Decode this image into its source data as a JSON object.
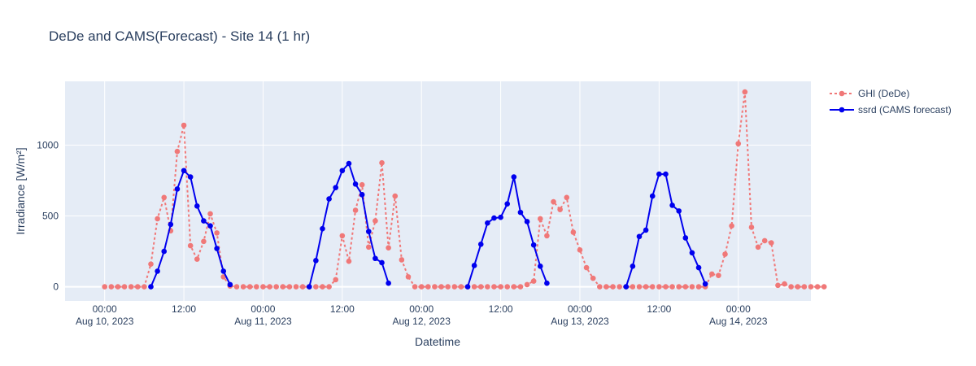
{
  "chart_data": {
    "type": "line",
    "title": "DeDe and CAMS(Forecast) - Site 14 (1 hr)",
    "xlabel": "Datetime",
    "ylabel": "Irradiance [W/m²]",
    "x_range": [
      "2023-08-09T18:00",
      "2023-08-14T11:00"
    ],
    "ylim": [
      -100,
      1450
    ],
    "y_ticks": [
      0,
      500,
      1000
    ],
    "x_ticks": [
      {
        "datetime": "2023-08-10T00:00",
        "label_time": "00:00",
        "label_date": "Aug 10, 2023"
      },
      {
        "datetime": "2023-08-10T12:00",
        "label_time": "12:00",
        "label_date": ""
      },
      {
        "datetime": "2023-08-11T00:00",
        "label_time": "00:00",
        "label_date": "Aug 11, 2023"
      },
      {
        "datetime": "2023-08-11T12:00",
        "label_time": "12:00",
        "label_date": ""
      },
      {
        "datetime": "2023-08-12T00:00",
        "label_time": "00:00",
        "label_date": "Aug 12, 2023"
      },
      {
        "datetime": "2023-08-12T12:00",
        "label_time": "12:00",
        "label_date": ""
      },
      {
        "datetime": "2023-08-13T00:00",
        "label_time": "00:00",
        "label_date": "Aug 13, 2023"
      },
      {
        "datetime": "2023-08-13T12:00",
        "label_time": "12:00",
        "label_date": ""
      },
      {
        "datetime": "2023-08-14T00:00",
        "label_time": "00:00",
        "label_date": "Aug 14, 2023"
      }
    ],
    "legend_position": "top-right, outside plot",
    "grid": true,
    "series": [
      {
        "name": "GHI (DeDe)",
        "color": "#f07878",
        "line_style": "dotted",
        "start": "2023-08-10T00:00",
        "step_hours": 1,
        "values": [
          0,
          0,
          0,
          0,
          0,
          0,
          0,
          160,
          480,
          630,
          395,
          955,
          1140,
          290,
          195,
          320,
          515,
          380,
          70,
          5,
          0,
          0,
          0,
          0,
          0,
          0,
          0,
          0,
          0,
          0,
          0,
          0,
          0,
          0,
          0,
          50,
          360,
          180,
          540,
          720,
          280,
          465,
          875,
          275,
          640,
          190,
          70,
          0,
          0,
          0,
          0,
          0,
          0,
          0,
          0,
          0,
          0,
          0,
          0,
          0,
          0,
          0,
          0,
          0,
          15,
          40,
          480,
          360,
          600,
          545,
          630,
          385,
          260,
          135,
          60,
          0,
          0,
          0,
          0,
          0,
          0,
          0,
          0,
          0,
          0,
          0,
          0,
          0,
          0,
          0,
          0,
          0,
          90,
          80,
          230,
          430,
          1010,
          1375,
          420,
          280,
          325,
          310,
          10,
          20,
          0,
          0,
          0,
          0,
          0,
          0
        ]
      },
      {
        "name": "ssrd (CAMS forecast)",
        "color": "#0000ee",
        "line_style": "solid",
        "segments": [
          {
            "start": "2023-08-10T07:00",
            "step_hours": 1,
            "values": [
              0,
              110,
              250,
              440,
              690,
              820,
              775,
              570,
              465,
              430,
              270,
              110,
              15
            ]
          },
          {
            "start": "2023-08-11T07:00",
            "step_hours": 1,
            "values": [
              0,
              185,
              410,
              620,
              700,
              820,
              870,
              725,
              650,
              390,
              200,
              170,
              25
            ]
          },
          {
            "start": "2023-08-12T07:00",
            "step_hours": 1,
            "values": [
              0,
              150,
              300,
              450,
              485,
              490,
              585,
              775,
              525,
              460,
              295,
              145,
              25
            ]
          },
          {
            "start": "2023-08-13T07:00",
            "step_hours": 1,
            "values": [
              0,
              145,
              355,
              400,
              640,
              795,
              795,
              575,
              535,
              345,
              240,
              135,
              20
            ]
          }
        ]
      }
    ]
  }
}
